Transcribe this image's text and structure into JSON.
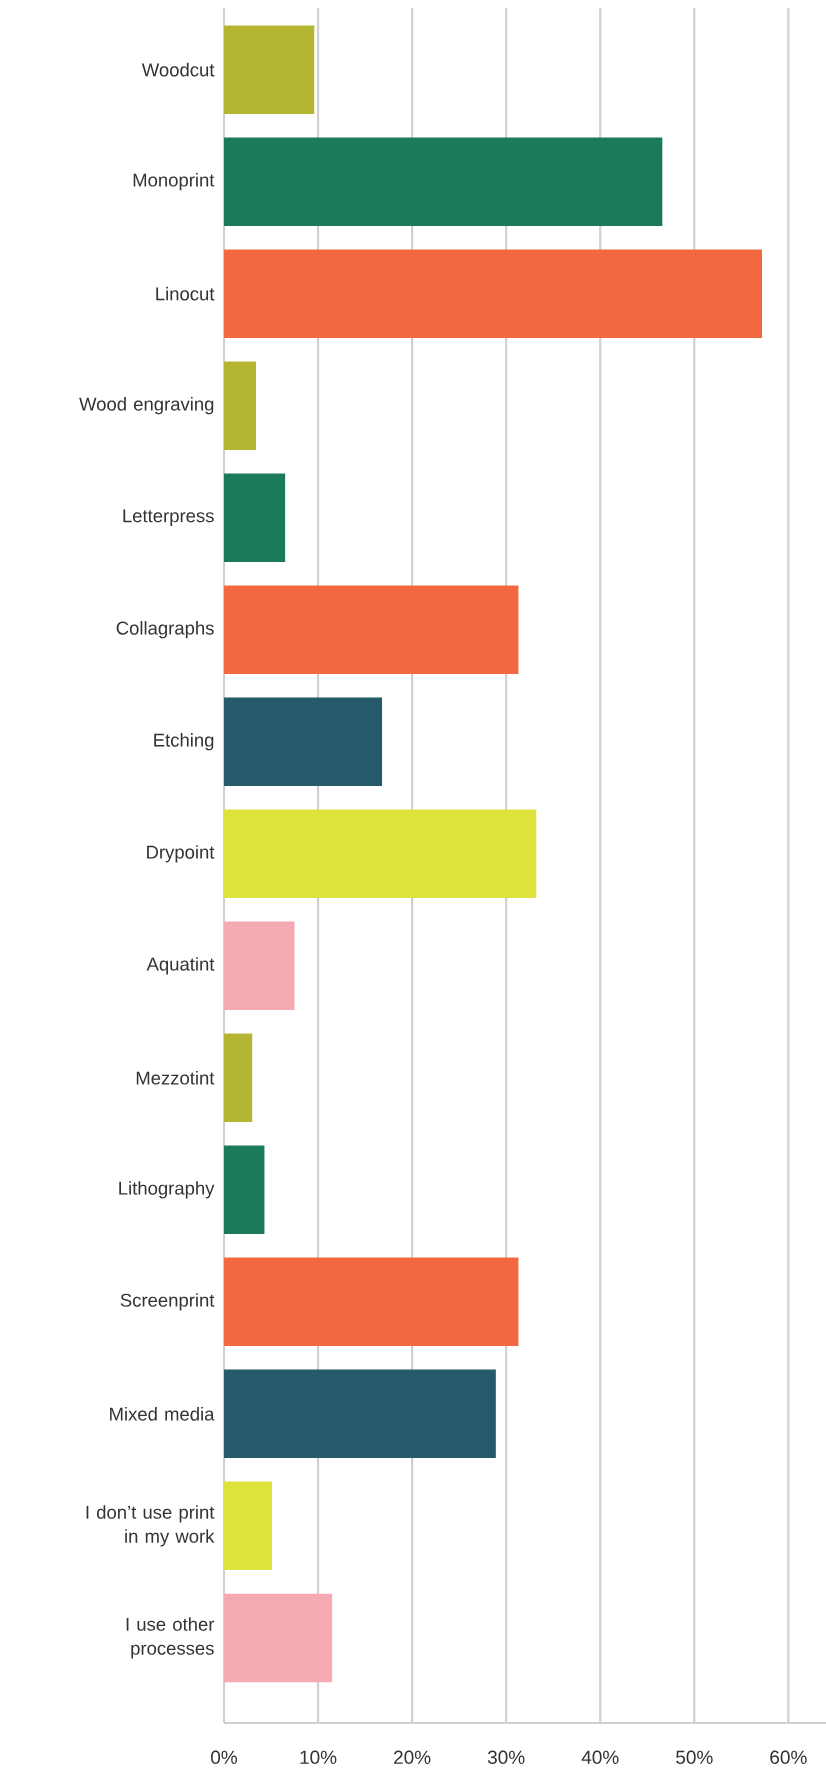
{
  "chart_data": {
    "type": "bar",
    "orientation": "horizontal",
    "grid": "x",
    "categories": [
      "Woodcut",
      "Monoprint",
      "Linocut",
      "Wood engraving",
      "Letterpress",
      "Collagraphs",
      "Etching",
      "Drypoint",
      "Aquatint",
      "Mezzotint",
      "Lithography",
      "Screenprint",
      "Mixed media",
      "I don’t use print in my work",
      "I use other processes"
    ],
    "values": [
      9.6,
      46.6,
      57.2,
      3.4,
      6.5,
      31.3,
      16.8,
      33.2,
      7.5,
      3.0,
      4.3,
      31.3,
      28.9,
      5.1,
      11.5
    ],
    "colors": [
      "#b3b533",
      "#1b7a5a",
      "#f26841",
      "#b3b533",
      "#1b7a5a",
      "#f26841",
      "#265a6a",
      "#dee23c",
      "#f5aab1",
      "#b3b533",
      "#1b7a5a",
      "#f26841",
      "#265a6a",
      "#dee23c",
      "#f5aab1"
    ],
    "xlim": [
      0,
      64
    ],
    "xticks": [
      {
        "value": 0,
        "label": "0%"
      },
      {
        "value": 10,
        "label": "10%"
      },
      {
        "value": 20,
        "label": "20%"
      },
      {
        "value": 30,
        "label": "30%"
      },
      {
        "value": 40,
        "label": "40%"
      },
      {
        "value": 50,
        "label": "50%"
      },
      {
        "value": 60,
        "label": "60%"
      }
    ]
  }
}
